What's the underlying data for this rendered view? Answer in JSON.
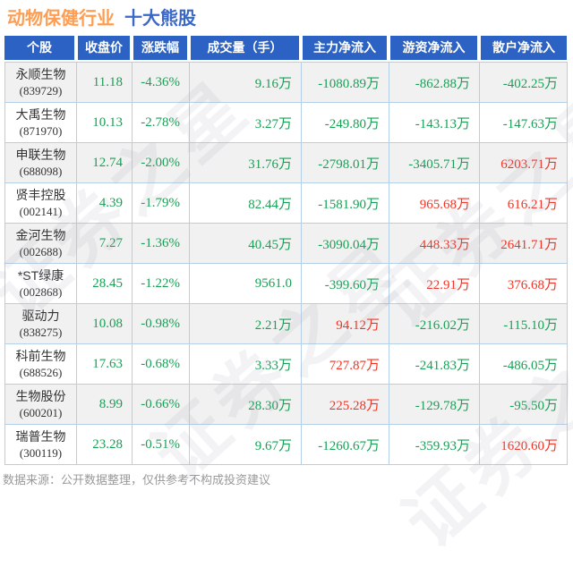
{
  "title": {
    "industry": "动物保健行业",
    "label": "十大熊股"
  },
  "watermark": "证券之星",
  "footer": "数据来源：公开数据整理，仅供参考不构成投资建议",
  "colors": {
    "up": "#f63122",
    "down": "#18a155",
    "header_bg": "#2b62c4",
    "title_industry": "#ff9d52",
    "title_label": "#3a68c8",
    "border": "#b4cfe8"
  },
  "chart_data": {
    "type": "table",
    "title": "动物保健行业 十大熊股",
    "columns": [
      "个股",
      "收盘价",
      "涨跌幅",
      "成交量（手）",
      "主力净流入",
      "游资净流入",
      "散户净流入"
    ],
    "rows": [
      {
        "name": "永顺生物",
        "code": "(839729)",
        "close": "11.18",
        "change": "-4.36%",
        "volume": "9.16万",
        "main": "-1080.89万",
        "speculative": "-862.88万",
        "retail": "-402.25万",
        "dir": "down"
      },
      {
        "name": "大禹生物",
        "code": "(871970)",
        "close": "10.13",
        "change": "-2.78%",
        "volume": "3.27万",
        "main": "-249.80万",
        "speculative": "-143.13万",
        "retail": "-147.63万",
        "dir": "down"
      },
      {
        "name": "申联生物",
        "code": "(688098)",
        "close": "12.74",
        "change": "-2.00%",
        "volume": "31.76万",
        "main": "-2798.01万",
        "speculative": "-3405.71万",
        "retail": "6203.71万",
        "dir": "down"
      },
      {
        "name": "贤丰控股",
        "code": "(002141)",
        "close": "4.39",
        "change": "-1.79%",
        "volume": "82.44万",
        "main": "-1581.90万",
        "speculative": "965.68万",
        "retail": "616.21万",
        "dir": "down"
      },
      {
        "name": "金河生物",
        "code": "(002688)",
        "close": "7.27",
        "change": "-1.36%",
        "volume": "40.45万",
        "main": "-3090.04万",
        "speculative": "448.33万",
        "retail": "2641.71万",
        "dir": "down"
      },
      {
        "name": "*ST绿康",
        "code": "(002868)",
        "close": "28.45",
        "change": "-1.22%",
        "volume": "9561.0",
        "main": "-399.60万",
        "speculative": "22.91万",
        "retail": "376.68万",
        "dir": "down"
      },
      {
        "name": "驱动力",
        "code": "(838275)",
        "close": "10.08",
        "change": "-0.98%",
        "volume": "2.21万",
        "main": "94.12万",
        "speculative": "-216.02万",
        "retail": "-115.10万",
        "dir": "down"
      },
      {
        "name": "科前生物",
        "code": "(688526)",
        "close": "17.63",
        "change": "-0.68%",
        "volume": "3.33万",
        "main": "727.87万",
        "speculative": "-241.83万",
        "retail": "-486.05万",
        "dir": "down"
      },
      {
        "name": "生物股份",
        "code": "(600201)",
        "close": "8.99",
        "change": "-0.66%",
        "volume": "28.30万",
        "main": "225.28万",
        "speculative": "-129.78万",
        "retail": "-95.50万",
        "dir": "down"
      },
      {
        "name": "瑞普生物",
        "code": "(300119)",
        "close": "23.28",
        "change": "-0.51%",
        "volume": "9.67万",
        "main": "-1260.67万",
        "speculative": "-359.93万",
        "retail": "1620.60万",
        "dir": "down"
      }
    ]
  }
}
